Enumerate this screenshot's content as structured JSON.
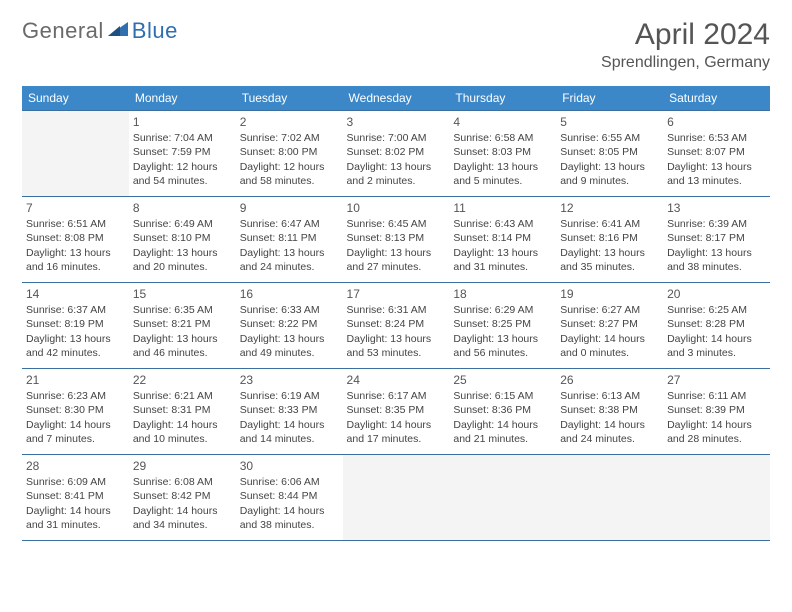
{
  "logo": {
    "text1": "General",
    "text2": "Blue"
  },
  "title": "April 2024",
  "location": "Sprendlingen, Germany",
  "colors": {
    "header_bg": "#3b87c8",
    "header_text": "#ffffff",
    "border": "#3b6fa0",
    "empty_bg": "#f4f4f4",
    "logo_gray": "#6a6a6a",
    "logo_blue": "#2f6fb0"
  },
  "weekdays": [
    "Sunday",
    "Monday",
    "Tuesday",
    "Wednesday",
    "Thursday",
    "Friday",
    "Saturday"
  ],
  "weeks": [
    [
      {
        "empty": true
      },
      {
        "num": "1",
        "sunrise": "Sunrise: 7:04 AM",
        "sunset": "Sunset: 7:59 PM",
        "daylight": "Daylight: 12 hours and 54 minutes."
      },
      {
        "num": "2",
        "sunrise": "Sunrise: 7:02 AM",
        "sunset": "Sunset: 8:00 PM",
        "daylight": "Daylight: 12 hours and 58 minutes."
      },
      {
        "num": "3",
        "sunrise": "Sunrise: 7:00 AM",
        "sunset": "Sunset: 8:02 PM",
        "daylight": "Daylight: 13 hours and 2 minutes."
      },
      {
        "num": "4",
        "sunrise": "Sunrise: 6:58 AM",
        "sunset": "Sunset: 8:03 PM",
        "daylight": "Daylight: 13 hours and 5 minutes."
      },
      {
        "num": "5",
        "sunrise": "Sunrise: 6:55 AM",
        "sunset": "Sunset: 8:05 PM",
        "daylight": "Daylight: 13 hours and 9 minutes."
      },
      {
        "num": "6",
        "sunrise": "Sunrise: 6:53 AM",
        "sunset": "Sunset: 8:07 PM",
        "daylight": "Daylight: 13 hours and 13 minutes."
      }
    ],
    [
      {
        "num": "7",
        "sunrise": "Sunrise: 6:51 AM",
        "sunset": "Sunset: 8:08 PM",
        "daylight": "Daylight: 13 hours and 16 minutes."
      },
      {
        "num": "8",
        "sunrise": "Sunrise: 6:49 AM",
        "sunset": "Sunset: 8:10 PM",
        "daylight": "Daylight: 13 hours and 20 minutes."
      },
      {
        "num": "9",
        "sunrise": "Sunrise: 6:47 AM",
        "sunset": "Sunset: 8:11 PM",
        "daylight": "Daylight: 13 hours and 24 minutes."
      },
      {
        "num": "10",
        "sunrise": "Sunrise: 6:45 AM",
        "sunset": "Sunset: 8:13 PM",
        "daylight": "Daylight: 13 hours and 27 minutes."
      },
      {
        "num": "11",
        "sunrise": "Sunrise: 6:43 AM",
        "sunset": "Sunset: 8:14 PM",
        "daylight": "Daylight: 13 hours and 31 minutes."
      },
      {
        "num": "12",
        "sunrise": "Sunrise: 6:41 AM",
        "sunset": "Sunset: 8:16 PM",
        "daylight": "Daylight: 13 hours and 35 minutes."
      },
      {
        "num": "13",
        "sunrise": "Sunrise: 6:39 AM",
        "sunset": "Sunset: 8:17 PM",
        "daylight": "Daylight: 13 hours and 38 minutes."
      }
    ],
    [
      {
        "num": "14",
        "sunrise": "Sunrise: 6:37 AM",
        "sunset": "Sunset: 8:19 PM",
        "daylight": "Daylight: 13 hours and 42 minutes."
      },
      {
        "num": "15",
        "sunrise": "Sunrise: 6:35 AM",
        "sunset": "Sunset: 8:21 PM",
        "daylight": "Daylight: 13 hours and 46 minutes."
      },
      {
        "num": "16",
        "sunrise": "Sunrise: 6:33 AM",
        "sunset": "Sunset: 8:22 PM",
        "daylight": "Daylight: 13 hours and 49 minutes."
      },
      {
        "num": "17",
        "sunrise": "Sunrise: 6:31 AM",
        "sunset": "Sunset: 8:24 PM",
        "daylight": "Daylight: 13 hours and 53 minutes."
      },
      {
        "num": "18",
        "sunrise": "Sunrise: 6:29 AM",
        "sunset": "Sunset: 8:25 PM",
        "daylight": "Daylight: 13 hours and 56 minutes."
      },
      {
        "num": "19",
        "sunrise": "Sunrise: 6:27 AM",
        "sunset": "Sunset: 8:27 PM",
        "daylight": "Daylight: 14 hours and 0 minutes."
      },
      {
        "num": "20",
        "sunrise": "Sunrise: 6:25 AM",
        "sunset": "Sunset: 8:28 PM",
        "daylight": "Daylight: 14 hours and 3 minutes."
      }
    ],
    [
      {
        "num": "21",
        "sunrise": "Sunrise: 6:23 AM",
        "sunset": "Sunset: 8:30 PM",
        "daylight": "Daylight: 14 hours and 7 minutes."
      },
      {
        "num": "22",
        "sunrise": "Sunrise: 6:21 AM",
        "sunset": "Sunset: 8:31 PM",
        "daylight": "Daylight: 14 hours and 10 minutes."
      },
      {
        "num": "23",
        "sunrise": "Sunrise: 6:19 AM",
        "sunset": "Sunset: 8:33 PM",
        "daylight": "Daylight: 14 hours and 14 minutes."
      },
      {
        "num": "24",
        "sunrise": "Sunrise: 6:17 AM",
        "sunset": "Sunset: 8:35 PM",
        "daylight": "Daylight: 14 hours and 17 minutes."
      },
      {
        "num": "25",
        "sunrise": "Sunrise: 6:15 AM",
        "sunset": "Sunset: 8:36 PM",
        "daylight": "Daylight: 14 hours and 21 minutes."
      },
      {
        "num": "26",
        "sunrise": "Sunrise: 6:13 AM",
        "sunset": "Sunset: 8:38 PM",
        "daylight": "Daylight: 14 hours and 24 minutes."
      },
      {
        "num": "27",
        "sunrise": "Sunrise: 6:11 AM",
        "sunset": "Sunset: 8:39 PM",
        "daylight": "Daylight: 14 hours and 28 minutes."
      }
    ],
    [
      {
        "num": "28",
        "sunrise": "Sunrise: 6:09 AM",
        "sunset": "Sunset: 8:41 PM",
        "daylight": "Daylight: 14 hours and 31 minutes."
      },
      {
        "num": "29",
        "sunrise": "Sunrise: 6:08 AM",
        "sunset": "Sunset: 8:42 PM",
        "daylight": "Daylight: 14 hours and 34 minutes."
      },
      {
        "num": "30",
        "sunrise": "Sunrise: 6:06 AM",
        "sunset": "Sunset: 8:44 PM",
        "daylight": "Daylight: 14 hours and 38 minutes."
      },
      {
        "empty": true
      },
      {
        "empty": true
      },
      {
        "empty": true
      },
      {
        "empty": true
      }
    ]
  ]
}
